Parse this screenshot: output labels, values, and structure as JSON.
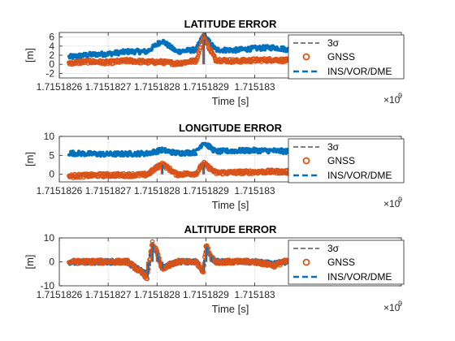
{
  "colors": {
    "sigma": "#000000",
    "gnss": "#D95319",
    "ins": "#0072BD",
    "axis": "#262626",
    "grid": "#dfdfdf"
  },
  "chart_data": [
    {
      "type": "scatter",
      "title": "LATITUDE ERROR",
      "xlabel": "Time [s]",
      "ylabel": "[m]",
      "x_exponent_label": "×10",
      "x_exponent": "9",
      "xlim": [
        1.7151826,
        1.7151833
      ],
      "ylim": [
        -3,
        7
      ],
      "xticks": [
        "1.7151826",
        "1.7151827",
        "1.7151828",
        "1.7151829",
        "1.715183"
      ],
      "xtick_values": [
        1.7151826,
        1.7151827,
        1.7151828,
        1.7151829,
        1.715183
      ],
      "yticks": [
        "-2",
        "0",
        "2",
        "4",
        "6"
      ],
      "ytick_values": [
        -2,
        0,
        2,
        4,
        6
      ],
      "grid": true,
      "legend_position": "top-right",
      "data_start": 1.71518262,
      "data_end": 1.71518323,
      "series": [
        {
          "name": "3σ",
          "style": "dashed-line",
          "values": []
        },
        {
          "name": "GNSS",
          "style": "circle-markers",
          "points": [
            [
              1.71518262,
              0.3
            ],
            [
              1.71518266,
              0.6
            ],
            [
              1.7151827,
              0.4
            ],
            [
              1.71518274,
              0.8
            ],
            [
              1.71518278,
              0.5
            ],
            [
              1.71518281,
              0.5
            ],
            [
              1.71518284,
              0.2
            ],
            [
              1.71518288,
              0.8
            ],
            [
              1.715182895,
              6.0
            ],
            [
              1.71518292,
              1.0
            ],
            [
              1.71518296,
              0.7
            ],
            [
              1.715183,
              0.9
            ],
            [
              1.71518304,
              1.0
            ],
            [
              1.71518307,
              0.8
            ],
            [
              1.71518311,
              -0.4
            ],
            [
              1.71518315,
              -1.1
            ],
            [
              1.71518318,
              -0.9
            ],
            [
              1.71518321,
              -0.3
            ]
          ]
        },
        {
          "name": "INS/VOR/DME",
          "points": [
            [
              1.71518262,
              1.6
            ],
            [
              1.71518266,
              2.1
            ],
            [
              1.7151827,
              2.3
            ],
            [
              1.71518274,
              2.8
            ],
            [
              1.71518278,
              2.8
            ],
            [
              1.71518281,
              5.2
            ],
            [
              1.71518284,
              2.8
            ],
            [
              1.71518288,
              3.2
            ],
            [
              1.715182895,
              6.5
            ],
            [
              1.71518292,
              3.2
            ],
            [
              1.71518296,
              3.1
            ],
            [
              1.715183,
              3.5
            ],
            [
              1.71518304,
              3.7
            ],
            [
              1.71518307,
              3.2
            ],
            [
              1.71518311,
              1.4
            ],
            [
              1.71518315,
              0.6
            ],
            [
              1.71518318,
              0.8
            ],
            [
              1.71518321,
              1.7
            ]
          ]
        }
      ]
    },
    {
      "type": "scatter",
      "title": "LONGITUDE ERROR",
      "xlabel": "Time [s]",
      "ylabel": "[m]",
      "x_exponent_label": "×10",
      "x_exponent": "9",
      "xlim": [
        1.7151826,
        1.7151833
      ],
      "ylim": [
        -2,
        10
      ],
      "xticks": [
        "1.7151826",
        "1.7151827",
        "1.7151828",
        "1.7151829",
        "1.715183"
      ],
      "xtick_values": [
        1.7151826,
        1.7151827,
        1.7151828,
        1.7151829,
        1.715183
      ],
      "yticks": [
        "0",
        "5",
        "10"
      ],
      "ytick_values": [
        0,
        5,
        10
      ],
      "grid": true,
      "legend_position": "top-right",
      "data_start": 1.71518262,
      "data_end": 1.71518323,
      "series": [
        {
          "name": "3σ",
          "style": "dashed-line",
          "values": []
        },
        {
          "name": "GNSS",
          "style": "circle-markers",
          "points": [
            [
              1.71518262,
              -0.5
            ],
            [
              1.71518266,
              -0.3
            ],
            [
              1.7151827,
              -0.2
            ],
            [
              1.71518274,
              -0.2
            ],
            [
              1.71518278,
              -0.1
            ],
            [
              1.71518281,
              2.8
            ],
            [
              1.71518284,
              0.0
            ],
            [
              1.71518288,
              0.2
            ],
            [
              1.715182895,
              2.9
            ],
            [
              1.71518292,
              0.4
            ],
            [
              1.71518296,
              0.5
            ],
            [
              1.715183,
              0.6
            ],
            [
              1.71518304,
              0.7
            ],
            [
              1.71518307,
              0.6
            ],
            [
              1.71518311,
              0.3
            ],
            [
              1.71518315,
              0.0
            ],
            [
              1.71518318,
              -0.3
            ],
            [
              1.71518321,
              -0.5
            ]
          ]
        },
        {
          "name": "INS/VOR/DME",
          "points": [
            [
              1.71518262,
              5.6
            ],
            [
              1.71518266,
              5.4
            ],
            [
              1.7151827,
              5.3
            ],
            [
              1.71518274,
              5.4
            ],
            [
              1.71518278,
              5.5
            ],
            [
              1.71518281,
              6.4
            ],
            [
              1.71518284,
              5.6
            ],
            [
              1.71518288,
              5.8
            ],
            [
              1.715182895,
              8.5
            ],
            [
              1.71518292,
              6.0
            ],
            [
              1.71518296,
              6.2
            ],
            [
              1.715183,
              6.3
            ],
            [
              1.71518304,
              6.2
            ],
            [
              1.71518307,
              6.0
            ],
            [
              1.71518311,
              5.8
            ],
            [
              1.71518315,
              5.6
            ],
            [
              1.71518318,
              5.7
            ],
            [
              1.71518321,
              5.8
            ]
          ]
        }
      ]
    },
    {
      "type": "scatter",
      "title": "ALTITUDE ERROR",
      "xlabel": "Time [s]",
      "ylabel": "[m]",
      "x_exponent_label": "×10",
      "x_exponent": "9",
      "xlim": [
        1.7151826,
        1.7151833
      ],
      "ylim": [
        -10,
        10
      ],
      "xticks": [
        "1.7151826",
        "1.7151827",
        "1.7151828",
        "1.7151829",
        "1.715183"
      ],
      "xtick_values": [
        1.7151826,
        1.7151827,
        1.7151828,
        1.7151829,
        1.715183
      ],
      "yticks": [
        "-10",
        "0",
        "10"
      ],
      "ytick_values": [
        -10,
        0,
        10
      ],
      "grid": true,
      "legend_position": "top-right",
      "data_start": 1.71518262,
      "data_end": 1.71518323,
      "series": [
        {
          "name": "3σ",
          "style": "dashed-line",
          "values": []
        },
        {
          "name": "GNSS",
          "style": "circle-markers",
          "points": [
            [
              1.71518262,
              0.0
            ],
            [
              1.71518266,
              0.0
            ],
            [
              1.7151827,
              0.1
            ],
            [
              1.71518274,
              0.0
            ],
            [
              1.71518278,
              -6.5
            ],
            [
              1.71518279,
              8.0
            ],
            [
              1.7151828,
              4.0
            ],
            [
              1.71518281,
              -3.0
            ],
            [
              1.71518284,
              0.0
            ],
            [
              1.71518288,
              0.0
            ],
            [
              1.715182895,
              -4.0
            ],
            [
              1.7151829,
              7.0
            ],
            [
              1.71518291,
              2.5
            ],
            [
              1.71518292,
              0.0
            ],
            [
              1.71518296,
              0.0
            ],
            [
              1.715183,
              0.0
            ],
            [
              1.71518304,
              -1.5
            ],
            [
              1.71518306,
              0.0
            ],
            [
              1.7151831,
              0.0
            ],
            [
              1.71518316,
              0.0
            ],
            [
              1.71518321,
              0.0
            ]
          ]
        },
        {
          "name": "INS/VOR/DME",
          "points": [
            [
              1.71518262,
              0.0
            ],
            [
              1.71518266,
              0.0
            ],
            [
              1.7151827,
              0.0
            ],
            [
              1.71518274,
              0.0
            ],
            [
              1.71518278,
              -5.5
            ],
            [
              1.71518279,
              7.5
            ],
            [
              1.7151828,
              3.0
            ],
            [
              1.71518281,
              -2.5
            ],
            [
              1.71518284,
              0.0
            ],
            [
              1.71518288,
              0.0
            ],
            [
              1.715182895,
              -3.5
            ],
            [
              1.7151829,
              6.5
            ],
            [
              1.71518291,
              2.0
            ],
            [
              1.71518292,
              0.0
            ],
            [
              1.71518296,
              0.0
            ],
            [
              1.715183,
              0.0
            ],
            [
              1.71518304,
              -1.0
            ],
            [
              1.71518306,
              0.0
            ],
            [
              1.7151831,
              0.0
            ],
            [
              1.71518316,
              0.0
            ],
            [
              1.71518321,
              0.0
            ]
          ]
        }
      ]
    }
  ]
}
